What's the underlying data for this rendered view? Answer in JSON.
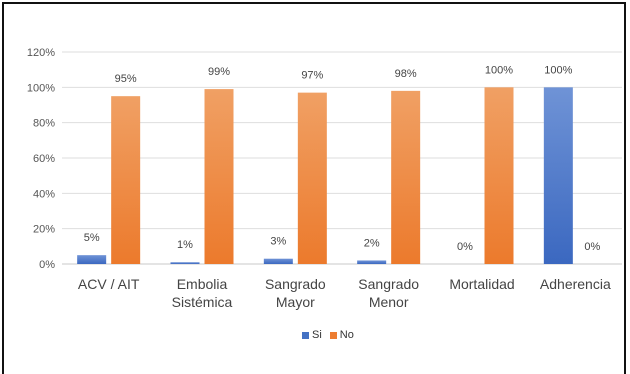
{
  "chart_data": {
    "type": "bar",
    "title": "",
    "xlabel": "",
    "ylabel": "",
    "ylim": [
      0,
      120
    ],
    "y_ticks": [
      "0%",
      "20%",
      "40%",
      "60%",
      "80%",
      "100%",
      "120%"
    ],
    "y_tick_values": [
      0,
      20,
      40,
      60,
      80,
      100,
      120
    ],
    "grid": true,
    "legend_position": "bottom",
    "categories": [
      [
        "ACV / AIT"
      ],
      [
        "Embolia",
        "Sistémica"
      ],
      [
        "Sangrado",
        "Mayor"
      ],
      [
        "Sangrado",
        "Menor"
      ],
      [
        "Mortalidad"
      ],
      [
        "Adherencia"
      ]
    ],
    "series": [
      {
        "name": "Si",
        "color": "#4472c4",
        "values": [
          5,
          1,
          3,
          2,
          0,
          100
        ],
        "labels": [
          "5%",
          "1%",
          "3%",
          "2%",
          "0%",
          "100%"
        ]
      },
      {
        "name": "No",
        "color": "#ed7d31",
        "values": [
          95,
          99,
          97,
          98,
          100,
          0
        ],
        "labels": [
          "95%",
          "99%",
          "97%",
          "98%",
          "100%",
          "0%"
        ]
      }
    ]
  }
}
